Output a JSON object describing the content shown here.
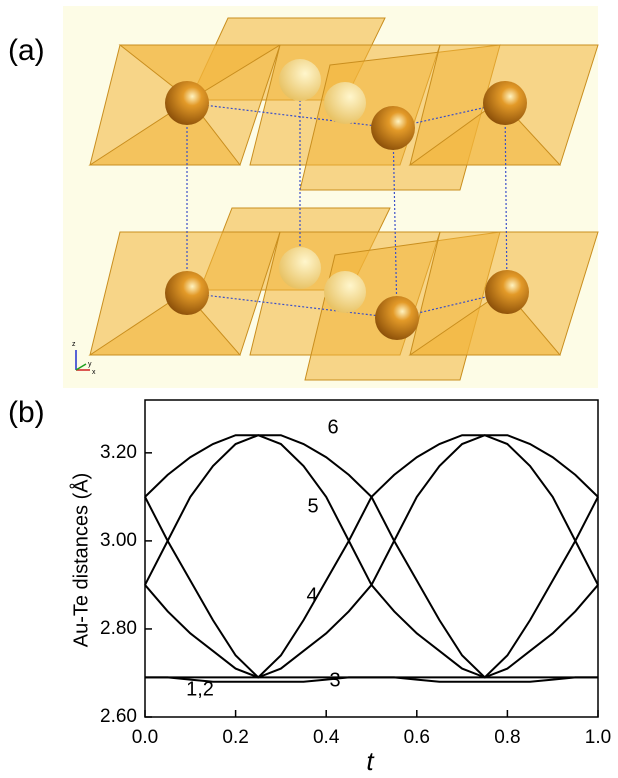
{
  "structure": {
    "label": "(a)",
    "axis_labels": [
      "z",
      "y",
      "x"
    ]
  },
  "chart_data": {
    "type": "line",
    "panel_label": "(b)",
    "x_label": "t",
    "y_label": "Au-Te distances (Å)",
    "x": [
      0,
      0.05,
      0.1,
      0.15,
      0.2,
      0.25,
      0.3,
      0.35,
      0.4,
      0.45,
      0.5,
      0.55,
      0.6,
      0.65,
      0.7,
      0.75,
      0.8,
      0.85,
      0.9,
      0.95,
      1
    ],
    "xlim": [
      0,
      1
    ],
    "ylim": [
      2.6,
      3.32
    ],
    "xticks": [
      {
        "value": 0,
        "label": "0.0"
      },
      0.2,
      0.4,
      0.6,
      0.8,
      {
        "value": 1,
        "label": "1.0"
      }
    ],
    "yticks": [
      {
        "value": 2.6,
        "label": "2.60"
      },
      {
        "value": 2.8,
        "label": "2.80"
      },
      {
        "value": 3.0,
        "label": "3.00"
      },
      {
        "value": 3.2,
        "label": "3.20"
      }
    ],
    "grid": false,
    "series": [
      {
        "name": "1,2",
        "color": "#000000",
        "values": [
          2.69,
          2.69,
          2.69,
          2.69,
          2.69,
          2.69,
          2.69,
          2.69,
          2.69,
          2.69,
          2.69,
          2.69,
          2.69,
          2.69,
          2.69,
          2.69,
          2.69,
          2.69,
          2.69,
          2.69,
          2.69
        ]
      },
      {
        "name": "3",
        "color": "#000000",
        "values": [
          2.69,
          2.69,
          2.685,
          2.68,
          2.68,
          2.68,
          2.68,
          2.68,
          2.685,
          2.69,
          2.69,
          2.69,
          2.685,
          2.68,
          2.68,
          2.68,
          2.68,
          2.68,
          2.685,
          2.69,
          2.69
        ]
      },
      {
        "name": "4",
        "color": "#000000",
        "values": [
          2.9,
          2.84,
          2.79,
          2.75,
          2.71,
          2.69,
          2.74,
          2.82,
          2.91,
          3.0,
          3.1,
          3.15,
          3.19,
          3.22,
          3.24,
          3.24,
          3.22,
          3.17,
          3.1,
          3.0,
          2.9
        ]
      },
      {
        "name": "5",
        "color": "#000000",
        "values": [
          3.1,
          3.0,
          2.91,
          2.82,
          2.74,
          2.69,
          2.71,
          2.75,
          2.79,
          2.84,
          2.9,
          3.0,
          3.1,
          3.17,
          3.22,
          3.24,
          3.24,
          3.22,
          3.19,
          3.15,
          3.1
        ]
      },
      {
        "name": "6",
        "color": "#000000",
        "values": [
          2.9,
          3.0,
          3.1,
          3.17,
          3.22,
          3.24,
          3.24,
          3.22,
          3.19,
          3.15,
          3.1,
          3.0,
          2.91,
          2.82,
          2.74,
          2.69,
          2.71,
          2.75,
          2.79,
          2.84,
          2.9
        ]
      },
      {
        "color": "#000000",
        "values": [
          3.1,
          3.15,
          3.19,
          3.22,
          3.24,
          3.24,
          3.22,
          3.17,
          3.1,
          3.0,
          2.9,
          2.84,
          2.79,
          2.75,
          2.71,
          2.69,
          2.74,
          2.82,
          2.91,
          3.0,
          3.1
        ]
      }
    ]
  }
}
